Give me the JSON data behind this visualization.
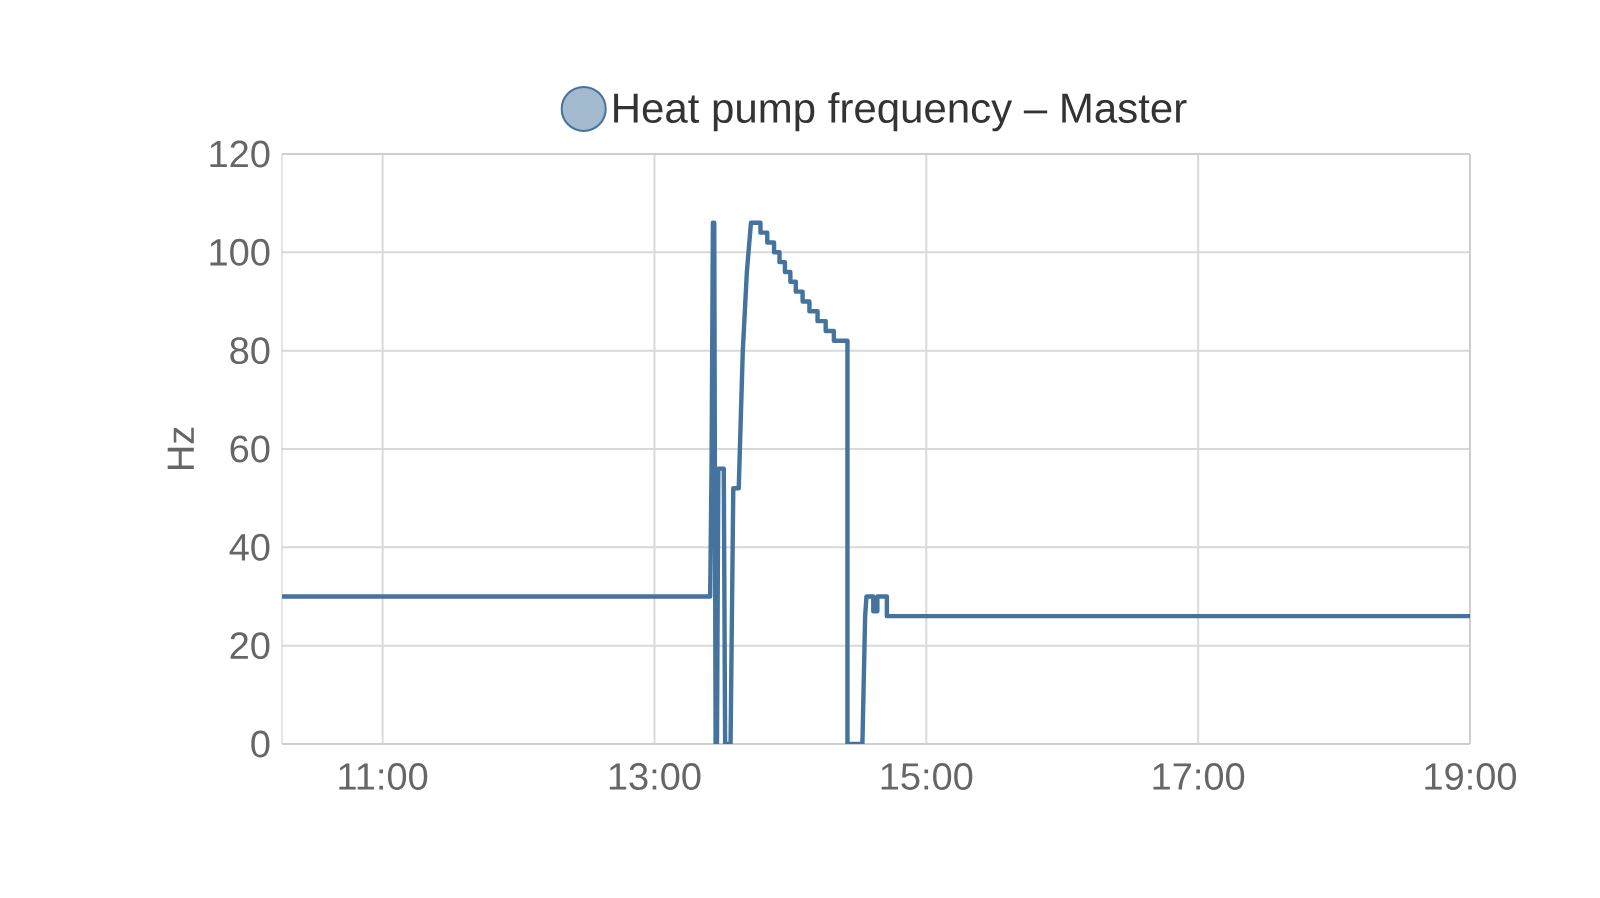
{
  "chart_data": {
    "type": "line",
    "ylabel": "Hz",
    "legend": "top",
    "grid": true,
    "marker": "none",
    "line_style": "solid",
    "xlim": [
      10.26,
      19
    ],
    "xticks": [
      {
        "value": 11,
        "label": "11:00"
      },
      {
        "value": 13,
        "label": "13:00"
      },
      {
        "value": 15,
        "label": "15:00"
      },
      {
        "value": 17,
        "label": "17:00"
      },
      {
        "value": 19,
        "label": "19:00"
      }
    ],
    "ylim": [
      0,
      120
    ],
    "yticks": [
      0,
      20,
      40,
      60,
      80,
      100,
      120
    ],
    "series": [
      {
        "name": "Heat pump frequency – Master",
        "color": "#44739e",
        "x": [
          10.26,
          13.4,
          13.41,
          13.42,
          13.43,
          13.44,
          13.45,
          13.46,
          13.47,
          13.47,
          13.5,
          13.51,
          13.52,
          13.56,
          13.58,
          13.62,
          13.65,
          13.68,
          13.71,
          13.78,
          13.78,
          13.83,
          13.83,
          13.88,
          13.88,
          13.92,
          13.92,
          13.96,
          13.96,
          14.0,
          14.0,
          14.04,
          14.04,
          14.09,
          14.09,
          14.14,
          14.14,
          14.2,
          14.2,
          14.26,
          14.26,
          14.32,
          14.32,
          14.38,
          14.38,
          14.42,
          14.42,
          14.53,
          14.55,
          14.56,
          14.61,
          14.61,
          14.64,
          14.64,
          14.71,
          14.71,
          19.0
        ],
        "values": [
          30,
          30,
          30,
          56,
          106,
          106,
          0,
          0,
          56,
          56,
          56,
          56,
          0,
          0,
          52,
          52,
          80,
          96,
          106,
          106,
          104,
          104,
          102,
          102,
          100,
          100,
          98,
          98,
          96,
          96,
          94,
          94,
          92,
          92,
          90,
          90,
          88,
          88,
          86,
          86,
          84,
          84,
          82,
          82,
          82,
          82,
          0,
          0,
          26,
          30,
          30,
          27,
          27,
          30,
          30,
          26,
          26
        ]
      }
    ]
  }
}
